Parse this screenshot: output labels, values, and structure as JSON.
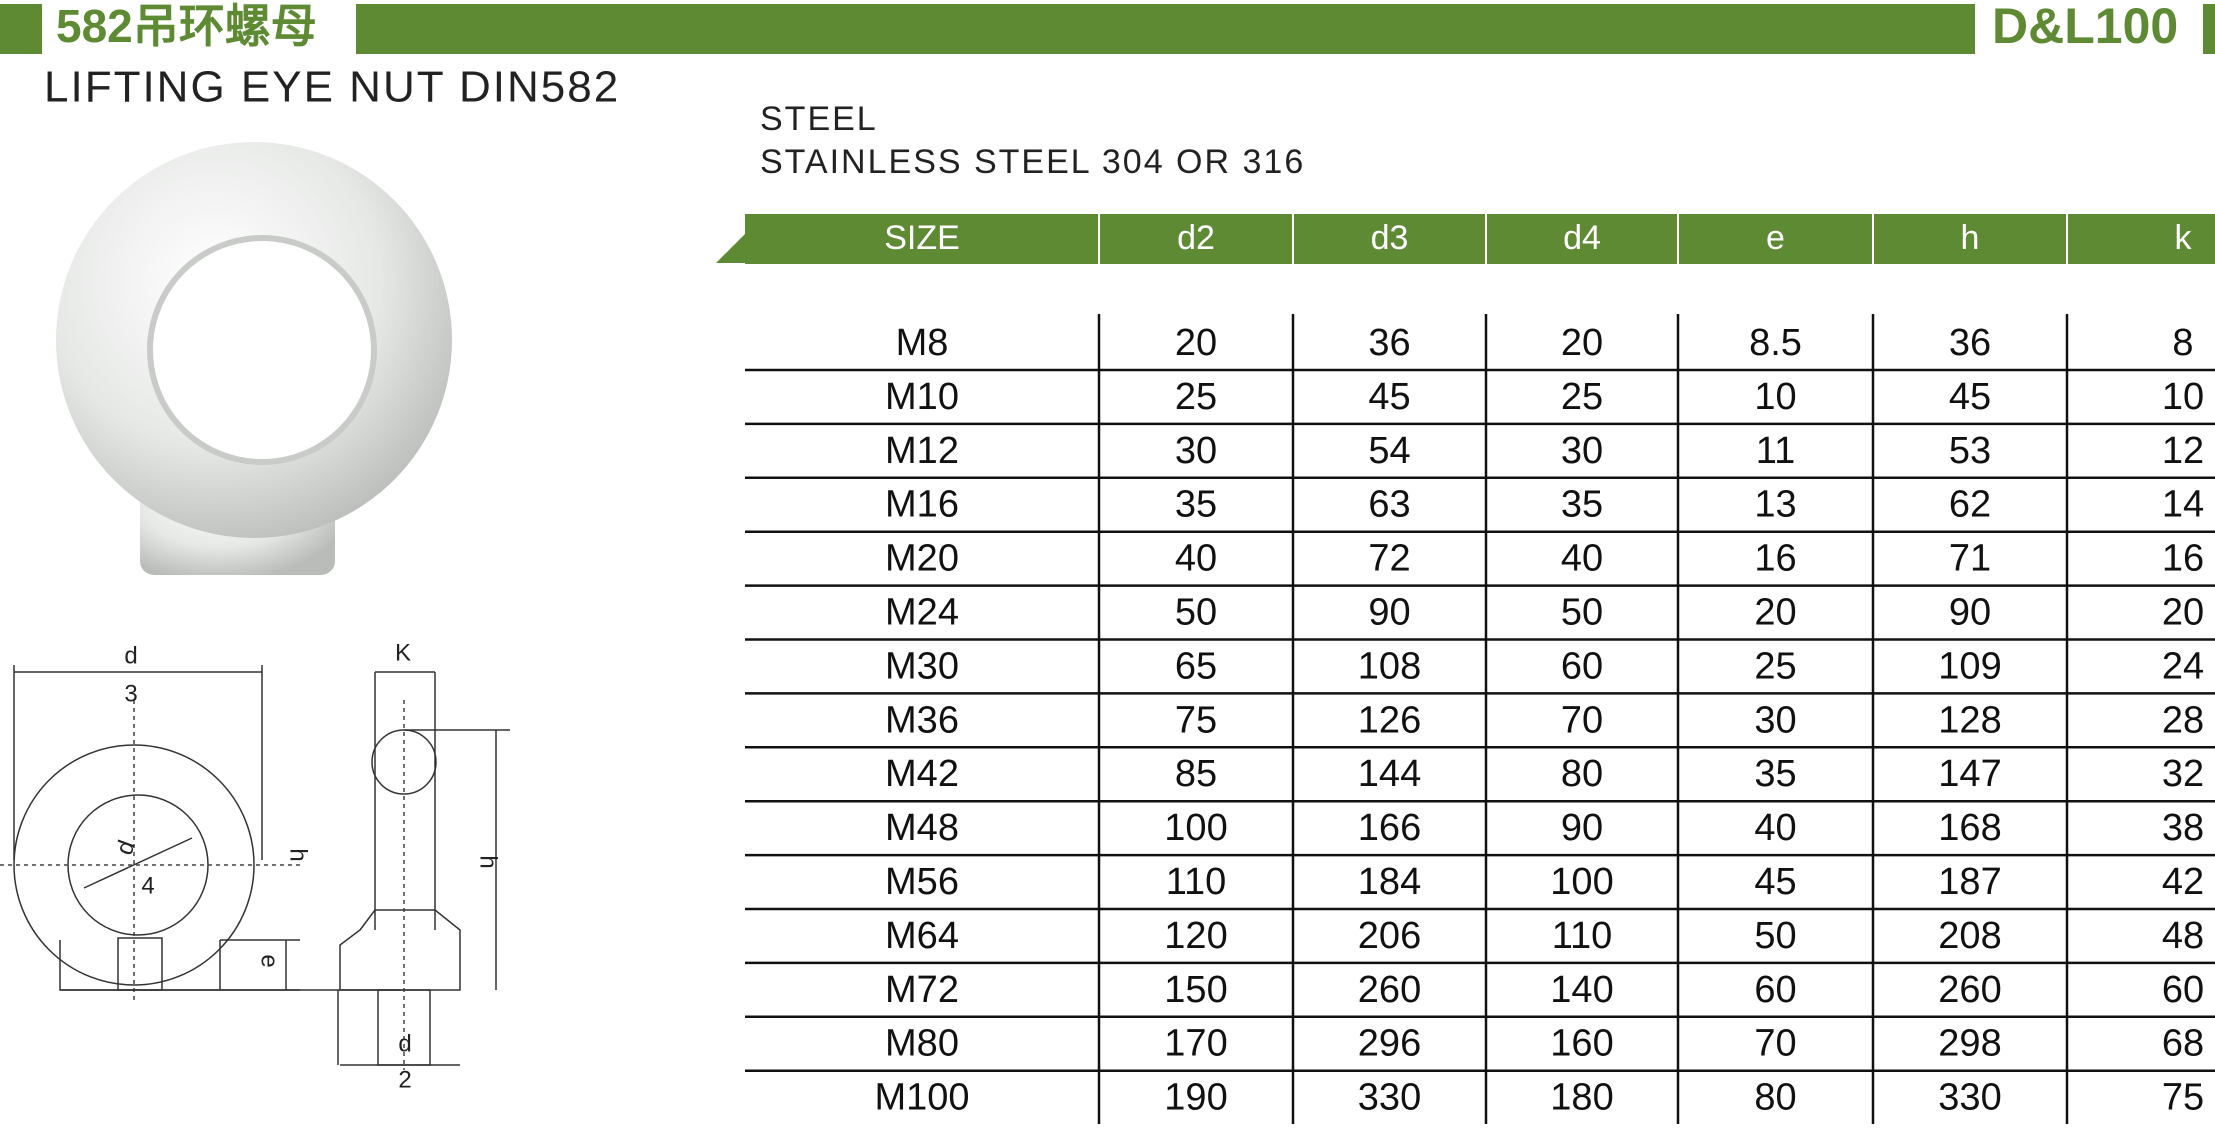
{
  "header": {
    "title": "582吊环螺母",
    "code": "D&L100"
  },
  "subtitle": "LIFTING EYE NUT DIN582",
  "materials": [
    "STEEL",
    "STAINLESS STEEL 304 OR 316"
  ],
  "diagram": {
    "labels": [
      "d",
      "3",
      "K",
      "h",
      "h",
      "d",
      "4",
      "e",
      "d",
      "2"
    ]
  },
  "table": {
    "columns": [
      "SIZE",
      "d2",
      "d3",
      "d4",
      "e",
      "h",
      "k"
    ],
    "rows": [
      [
        "M8",
        20,
        36,
        20,
        8.5,
        36,
        8
      ],
      [
        "M10",
        25,
        45,
        25,
        10,
        45,
        10
      ],
      [
        "M12",
        30,
        54,
        30,
        11,
        53,
        12
      ],
      [
        "M16",
        35,
        63,
        35,
        13,
        62,
        14
      ],
      [
        "M20",
        40,
        72,
        40,
        16,
        71,
        16
      ],
      [
        "M24",
        50,
        90,
        50,
        20,
        90,
        20
      ],
      [
        "M30",
        65,
        108,
        60,
        25,
        109,
        24
      ],
      [
        "M36",
        75,
        126,
        70,
        30,
        128,
        28
      ],
      [
        "M42",
        85,
        144,
        80,
        35,
        147,
        32
      ],
      [
        "M48",
        100,
        166,
        90,
        40,
        168,
        38
      ],
      [
        "M56",
        110,
        184,
        100,
        45,
        187,
        42
      ],
      [
        "M64",
        120,
        206,
        110,
        50,
        208,
        48
      ],
      [
        "M72",
        150,
        260,
        140,
        60,
        260,
        60
      ],
      [
        "M80",
        170,
        296,
        160,
        70,
        298,
        68
      ],
      [
        "M100",
        190,
        330,
        180,
        80,
        330,
        75
      ]
    ]
  }
}
